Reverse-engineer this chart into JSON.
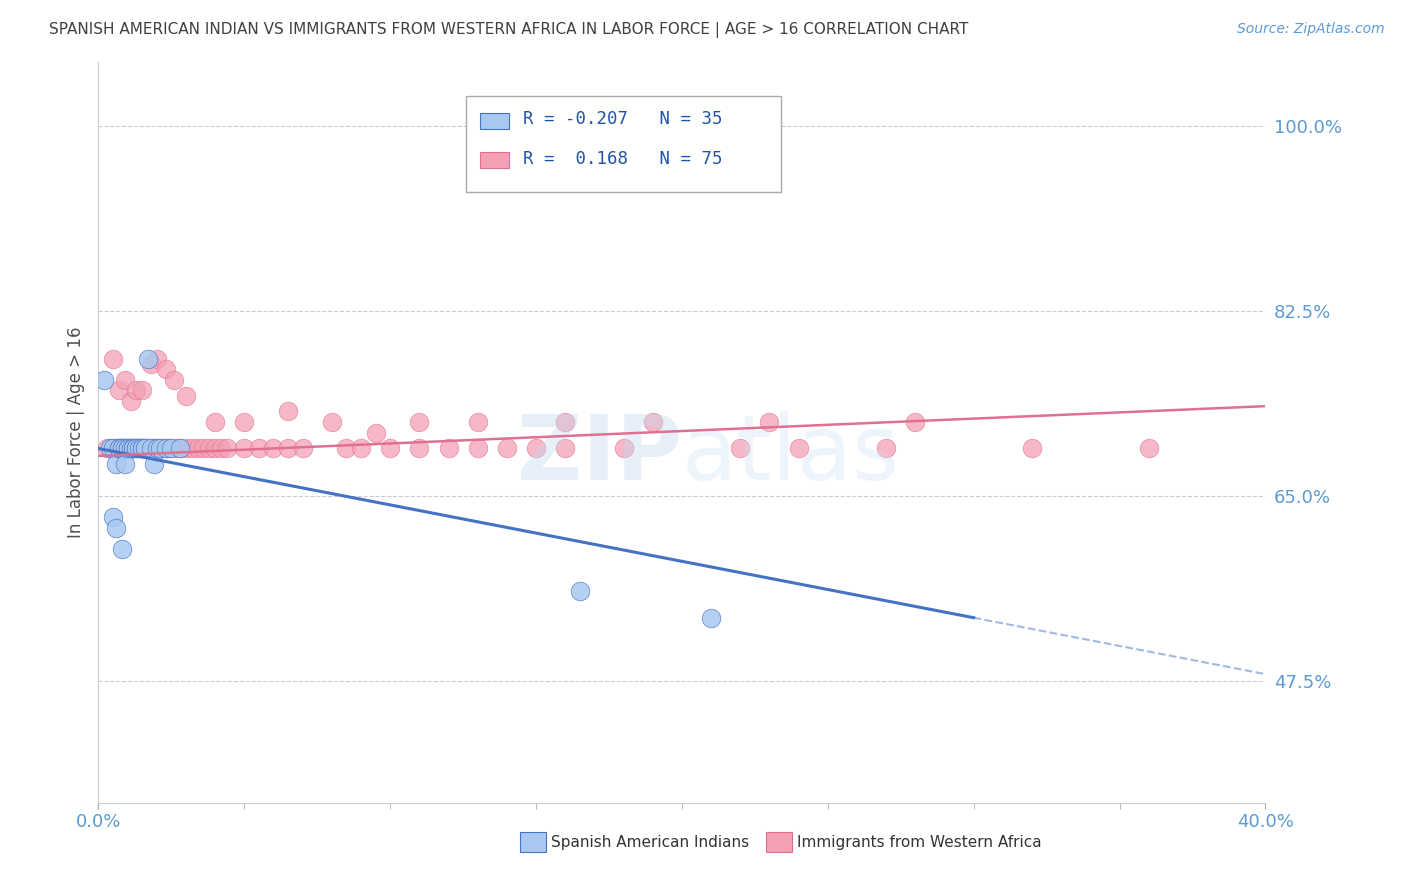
{
  "title": "SPANISH AMERICAN INDIAN VS IMMIGRANTS FROM WESTERN AFRICA IN LABOR FORCE | AGE > 16 CORRELATION CHART",
  "source": "Source: ZipAtlas.com",
  "ylabel": "In Labor Force | Age > 16",
  "r_blue": -0.207,
  "n_blue": 35,
  "r_pink": 0.168,
  "n_pink": 75,
  "legend_label_blue": "Spanish American Indians",
  "legend_label_pink": "Immigrants from Western Africa",
  "x_tick_labels": [
    "0.0%",
    "40.0%"
  ],
  "y_tick_labels": [
    "100.0%",
    "82.5%",
    "65.0%",
    "47.5%"
  ],
  "y_tick_values": [
    1.0,
    0.825,
    0.65,
    0.475
  ],
  "xlim": [
    0.0,
    0.4
  ],
  "ylim": [
    0.36,
    1.06
  ],
  "color_blue": "#A8C8F0",
  "color_pink": "#F4A0B5",
  "line_color_blue": "#4472C4",
  "line_color_pink": "#E07090",
  "watermark_zip": "ZIP",
  "watermark_atlas": "atlas",
  "background_color": "#ffffff",
  "grid_color": "#cccccc",
  "axis_label_color": "#5B9BD5",
  "title_color": "#404040",
  "blue_line_x0": 0.0,
  "blue_line_y0": 0.695,
  "blue_line_x1": 0.3,
  "blue_line_y1": 0.535,
  "pink_line_x0": 0.0,
  "pink_line_y0": 0.688,
  "pink_line_x1": 0.4,
  "pink_line_y1": 0.735,
  "blue_scatter_x": [
    0.002,
    0.004,
    0.005,
    0.006,
    0.007,
    0.007,
    0.008,
    0.008,
    0.009,
    0.009,
    0.01,
    0.01,
    0.011,
    0.012,
    0.012,
    0.013,
    0.013,
    0.014,
    0.015,
    0.015,
    0.016,
    0.016,
    0.017,
    0.018,
    0.019,
    0.02,
    0.021,
    0.023,
    0.025,
    0.028,
    0.005,
    0.006,
    0.008,
    0.165,
    0.21
  ],
  "blue_scatter_y": [
    0.76,
    0.695,
    0.695,
    0.68,
    0.695,
    0.695,
    0.695,
    0.695,
    0.695,
    0.68,
    0.695,
    0.695,
    0.695,
    0.695,
    0.695,
    0.695,
    0.695,
    0.695,
    0.695,
    0.695,
    0.695,
    0.695,
    0.78,
    0.695,
    0.68,
    0.695,
    0.695,
    0.695,
    0.695,
    0.695,
    0.63,
    0.62,
    0.6,
    0.56,
    0.535
  ],
  "pink_scatter_x": [
    0.003,
    0.005,
    0.006,
    0.007,
    0.008,
    0.008,
    0.009,
    0.01,
    0.011,
    0.012,
    0.013,
    0.014,
    0.015,
    0.016,
    0.017,
    0.018,
    0.019,
    0.02,
    0.021,
    0.022,
    0.023,
    0.024,
    0.025,
    0.027,
    0.028,
    0.03,
    0.032,
    0.034,
    0.036,
    0.038,
    0.04,
    0.042,
    0.044,
    0.05,
    0.055,
    0.06,
    0.065,
    0.07,
    0.085,
    0.09,
    0.1,
    0.11,
    0.12,
    0.13,
    0.14,
    0.15,
    0.16,
    0.18,
    0.22,
    0.24,
    0.27,
    0.32,
    0.36,
    0.005,
    0.007,
    0.009,
    0.011,
    0.013,
    0.015,
    0.018,
    0.02,
    0.023,
    0.026,
    0.03,
    0.04,
    0.05,
    0.065,
    0.08,
    0.095,
    0.11,
    0.13,
    0.16,
    0.19,
    0.23,
    0.28
  ],
  "pink_scatter_y": [
    0.695,
    0.695,
    0.695,
    0.695,
    0.695,
    0.695,
    0.695,
    0.695,
    0.695,
    0.695,
    0.695,
    0.695,
    0.695,
    0.695,
    0.695,
    0.695,
    0.695,
    0.695,
    0.695,
    0.695,
    0.695,
    0.695,
    0.695,
    0.695,
    0.695,
    0.695,
    0.695,
    0.695,
    0.695,
    0.695,
    0.695,
    0.695,
    0.695,
    0.695,
    0.695,
    0.695,
    0.695,
    0.695,
    0.695,
    0.695,
    0.695,
    0.695,
    0.695,
    0.695,
    0.695,
    0.695,
    0.695,
    0.695,
    0.695,
    0.695,
    0.695,
    0.695,
    0.695,
    0.78,
    0.75,
    0.76,
    0.74,
    0.75,
    0.75,
    0.775,
    0.78,
    0.77,
    0.76,
    0.745,
    0.72,
    0.72,
    0.73,
    0.72,
    0.71,
    0.72,
    0.72,
    0.72,
    0.72,
    0.72,
    0.72
  ]
}
